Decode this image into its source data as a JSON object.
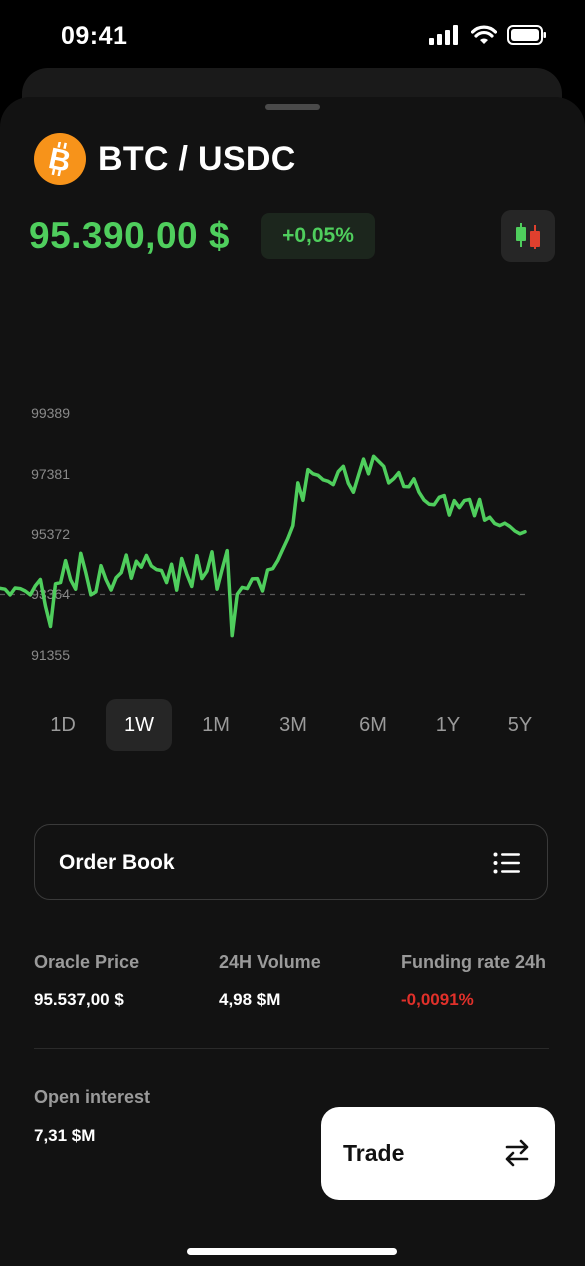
{
  "status_bar": {
    "time": "09:41"
  },
  "pair": {
    "title": "BTC / USDC",
    "icon": "bitcoin-icon"
  },
  "price": {
    "value": "95.390,00 $",
    "change": "+0,05%"
  },
  "colors": {
    "positive": "#4fce5d",
    "negative": "#e0302a",
    "background": "#121212",
    "coin": "#f7931a"
  },
  "chart_data": {
    "type": "line",
    "y_ticks": [
      "99389",
      "97381",
      "95372",
      "93364",
      "91355"
    ],
    "ylim": [
      91355,
      99389
    ],
    "reference_line": 93364,
    "reference_style": "dashed",
    "values": [
      93570,
      93540,
      93350,
      93580,
      93560,
      93480,
      93350,
      93650,
      93860,
      92990,
      92300,
      93720,
      93760,
      94490,
      93850,
      93540,
      94730,
      94090,
      93350,
      93450,
      94320,
      93860,
      93510,
      93920,
      94090,
      94670,
      93900,
      94470,
      94270,
      94660,
      94310,
      94190,
      94160,
      93760,
      94370,
      93510,
      94560,
      94040,
      93630,
      94650,
      93890,
      94140,
      94780,
      93540,
      94190,
      94820,
      92000,
      93370,
      93600,
      93560,
      93880,
      93890,
      93480,
      94180,
      94220,
      94490,
      94860,
      95220,
      95650,
      97070,
      96490,
      97510,
      97370,
      97320,
      97170,
      97120,
      97010,
      97440,
      97620,
      97060,
      96760,
      97310,
      97860,
      97370,
      97950,
      97790,
      97620,
      97070,
      97210,
      97410,
      96950,
      96940,
      97200,
      96760,
      96500,
      96360,
      96340,
      96590,
      96650,
      96000,
      96480,
      96250,
      96480,
      96520,
      95980,
      96520,
      95830,
      95930,
      95720,
      95650,
      95730,
      95620,
      95470,
      95380,
      95450
    ]
  },
  "timeframes": {
    "active": "1W",
    "items": [
      {
        "label": "1D"
      },
      {
        "label": "1W"
      },
      {
        "label": "1M"
      },
      {
        "label": "3M"
      },
      {
        "label": "6M"
      },
      {
        "label": "1Y"
      },
      {
        "label": "5Y"
      }
    ]
  },
  "order_book": {
    "label": "Order Book",
    "icon": "list-icon"
  },
  "stats": [
    {
      "label": "Oracle Price",
      "value": "95.537,00 $"
    },
    {
      "label": "24H Volume",
      "value": "4,98 $M"
    },
    {
      "label": "Funding rate 24h",
      "value": "-0,0091%"
    },
    {
      "label": "Open interest",
      "value": "7,31 $M"
    }
  ],
  "trade_button": {
    "label": "Trade",
    "icon": "swap-arrows-icon"
  }
}
